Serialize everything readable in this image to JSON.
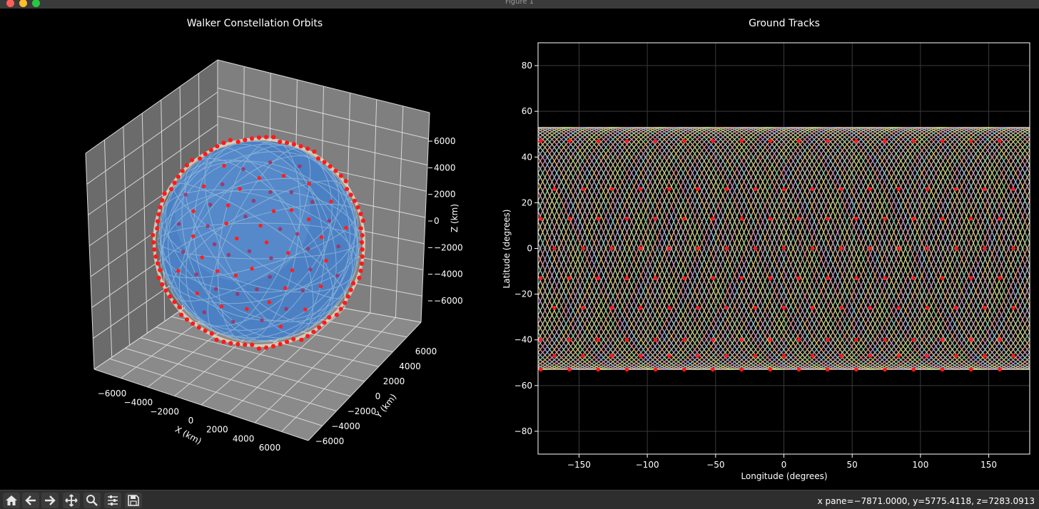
{
  "window": {
    "title": "Figure 1"
  },
  "toolbar": {
    "buttons": [
      {
        "name": "home-icon"
      },
      {
        "name": "back-arrow-icon"
      },
      {
        "name": "forward-arrow-icon"
      },
      {
        "name": "pan-icon"
      },
      {
        "name": "zoom-icon"
      },
      {
        "name": "configure-subplots-icon"
      },
      {
        "name": "save-icon"
      }
    ],
    "coords_text": "x pane=−7871.0000, y=5775.4118, z=7283.0913"
  },
  "colors": {
    "background": "#000000",
    "pane": "#808080",
    "earth": "#4a7fc0",
    "satellite": "#ff0000",
    "toolbar": "#2e2e2e"
  },
  "chart_data": [
    {
      "type": "scatter",
      "title": "Walker Constellation Orbits",
      "xlabel": "X (km)",
      "ylabel": "Y (km)",
      "zlabel": "Z (km)",
      "x_ticks": [
        "−6000",
        "−4000",
        "−2000",
        "0",
        "2000",
        "4000",
        "6000"
      ],
      "y_ticks": [
        "−6000",
        "−4000",
        "−2000",
        "0",
        "2000",
        "4000",
        "6000"
      ],
      "z_ticks": [
        "−6000",
        "−4000",
        "−2000",
        "0",
        "2000",
        "4000",
        "6000"
      ],
      "grid": true
    },
    {
      "type": "line",
      "title": "Ground Tracks",
      "xlabel": "Longitude (degrees)",
      "ylabel": "Latitude (degrees)",
      "xlim": [
        -180,
        180
      ],
      "ylim": [
        -90,
        90
      ],
      "x_ticks": [
        "−150",
        "−100",
        "−50",
        "0",
        "50",
        "100",
        "150"
      ],
      "x_tick_values": [
        -150,
        -100,
        -50,
        0,
        50,
        100,
        150
      ],
      "y_ticks": [
        "−80",
        "−60",
        "−40",
        "−20",
        "0",
        "20",
        "40",
        "60",
        "80"
      ],
      "y_tick_values": [
        -80,
        -60,
        -40,
        -20,
        0,
        20,
        40,
        60,
        80
      ],
      "inclination_deg": 53,
      "grid": true
    }
  ]
}
